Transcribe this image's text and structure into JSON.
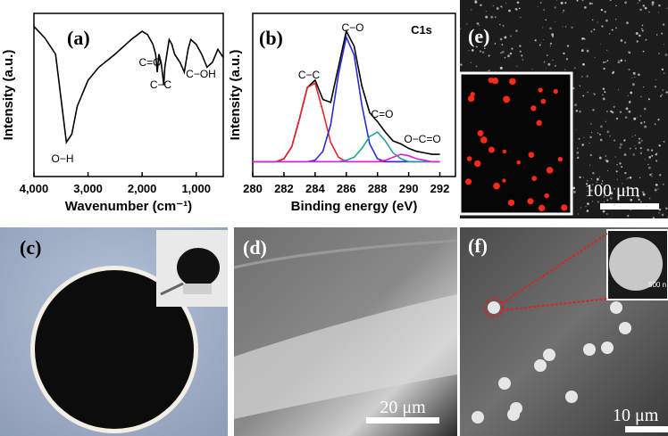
{
  "chart_data": [
    {
      "type": "line",
      "panel_label": "(a)",
      "x_label": "Wavenumber (cm⁻¹)",
      "y_label": "Intensity (a.u.)",
      "x": [
        4000,
        3800,
        3600,
        3500,
        3400,
        3300,
        3200,
        3000,
        2800,
        2500,
        2200,
        2000,
        1900,
        1800,
        1750,
        1720,
        1690,
        1650,
        1620,
        1600,
        1580,
        1500,
        1450,
        1400,
        1300,
        1220,
        1150,
        1100,
        1000,
        900,
        800,
        700,
        600,
        500
      ],
      "values": [
        92,
        85,
        75,
        48,
        21,
        26,
        43,
        59,
        67,
        75,
        84,
        89,
        87,
        81,
        75,
        64,
        75,
        70,
        62,
        56,
        67,
        84,
        81,
        75,
        70,
        64,
        78,
        84,
        81,
        75,
        67,
        70,
        78,
        73
      ],
      "color": "#000000",
      "annotations": [
        "O−H",
        "C=O",
        "C−C",
        "C−OH"
      ],
      "xlim": [
        4000,
        500
      ],
      "ylim": [
        0,
        100
      ],
      "xticks": [
        {
          "value": 4000,
          "label": "4,000"
        },
        {
          "value": 3000,
          "label": "3,000"
        },
        {
          "value": 2000,
          "label": "2,000"
        },
        {
          "value": 1000,
          "label": "1,000"
        }
      ]
    },
    {
      "type": "line",
      "panel_label": "(b)",
      "x_label": "Binding energy (eV)",
      "y_label": "Intensity (a.u.)",
      "annotations": [
        "C1s"
      ],
      "x": [
        280,
        280.5,
        281,
        281.5,
        282,
        282.5,
        283,
        283.5,
        284,
        284.5,
        285,
        285.5,
        286,
        286.5,
        287,
        287.5,
        288,
        288.5,
        289,
        289.5,
        290,
        290.5,
        291,
        291.5,
        292
      ],
      "series": [
        {
          "color": "#000000",
          "values": [
            0,
            0,
            0,
            0,
            2,
            10,
            29,
            50,
            55,
            42,
            40,
            64,
            88,
            78,
            51,
            33,
            27,
            20,
            14,
            12,
            9,
            7,
            6,
            5,
            5
          ]
        },
        {
          "name": "C−C",
          "color": "#e8262a",
          "values": [
            0,
            0,
            0,
            0,
            2,
            10,
            29,
            50,
            53,
            34,
            13,
            3,
            0,
            0,
            0,
            0,
            0,
            0,
            0,
            0,
            0,
            0,
            0,
            0,
            0
          ]
        },
        {
          "name": "C−O",
          "color": "#2b2bd6",
          "values": [
            0,
            0,
            0,
            0,
            0,
            0,
            0,
            0,
            1,
            7,
            25,
            59,
            84,
            72,
            38,
            12,
            2,
            0,
            0,
            0,
            0,
            0,
            0,
            0,
            0
          ]
        },
        {
          "name": "C=O",
          "color": "#1aa39a",
          "values": [
            0,
            0,
            0,
            0,
            0,
            0,
            0,
            0,
            0,
            0,
            0,
            0,
            1,
            3,
            9,
            17,
            20,
            14,
            6,
            2,
            0,
            0,
            0,
            0,
            0
          ]
        },
        {
          "name": "O−C=O",
          "color": "#e020d8",
          "values": [
            0,
            0,
            0,
            0,
            0,
            0,
            0,
            0,
            0,
            0,
            0,
            0,
            0,
            0,
            0,
            0,
            0,
            1,
            3,
            5,
            4,
            2,
            1,
            0,
            0
          ]
        }
      ],
      "xlim": [
        280,
        293
      ],
      "ylim": [
        -10,
        100
      ],
      "xticks": [
        280,
        282,
        284,
        286,
        288,
        290,
        292
      ]
    }
  ],
  "photos": [
    {
      "label": "(c)"
    },
    {
      "label": "(d)",
      "scale_bar": "20 μm"
    },
    {
      "label": "(e)",
      "scale_bar": "100 μm"
    },
    {
      "label": "(f)",
      "scale_bar": "10 μm",
      "inset_scale": "500 n"
    }
  ]
}
